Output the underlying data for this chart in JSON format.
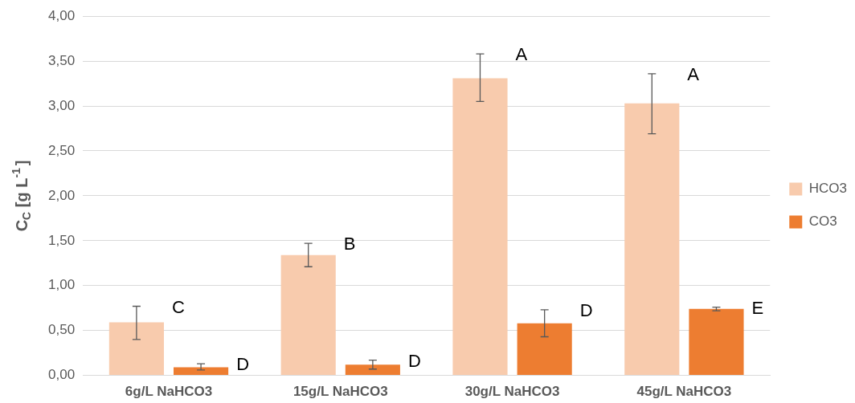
{
  "chart_data": {
    "type": "bar",
    "ylabel": "C$_{C}$ [g L$^{-1}$]",
    "categories": [
      "6g/L NaHCO3",
      "15g/L NaHCO3",
      "30g/L NaHCO3",
      "45g/L NaHCO3"
    ],
    "series": [
      {
        "name": "HCO3",
        "color": "#f8cbad",
        "values": [
          0.59,
          1.34,
          3.31,
          3.03
        ],
        "errors": [
          [
            0.4,
            0.77
          ],
          [
            1.21,
            1.47
          ],
          [
            3.05,
            3.58
          ],
          [
            2.69,
            3.36
          ]
        ]
      },
      {
        "name": "CO3",
        "color": "#ed7d31",
        "values": [
          0.09,
          0.12,
          0.58,
          0.74
        ],
        "errors": [
          [
            0.06,
            0.13
          ],
          [
            0.07,
            0.17
          ],
          [
            0.43,
            0.73
          ],
          [
            0.72,
            0.76
          ]
        ]
      }
    ],
    "ylim": [
      0,
      4
    ],
    "yticks": [
      {
        "value": 0,
        "label": "0,00"
      },
      {
        "value": 0.5,
        "label": "0,50"
      },
      {
        "value": 1,
        "label": "1,00"
      },
      {
        "value": 1.5,
        "label": "1,50"
      },
      {
        "value": 2,
        "label": "2,00"
      },
      {
        "value": 2.5,
        "label": "2,50"
      },
      {
        "value": 3,
        "label": "3,00"
      },
      {
        "value": 3.5,
        "label": "3,50"
      },
      {
        "value": 4,
        "label": "4,00"
      }
    ],
    "grid": "y",
    "legend": "right",
    "annotations": [
      "C",
      "D",
      "B",
      "D",
      "A",
      "D",
      "A",
      "E"
    ]
  }
}
